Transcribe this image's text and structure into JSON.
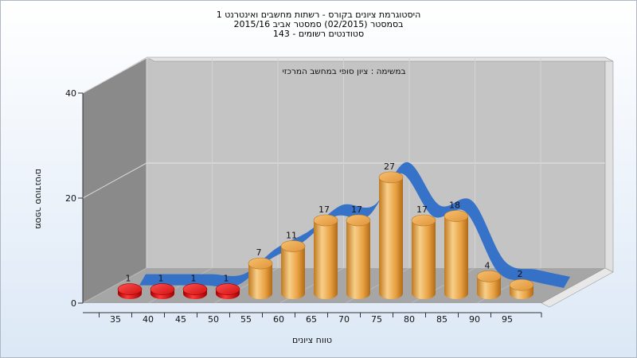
{
  "chart_data": {
    "type": "bar",
    "title_lines": [
      "היסטוגרמת ציונים בקורס - רשתות מחשבים ואינטרנט 1",
      "בסמסטר  (02/2015)  סמסטר אביב 2015/16",
      "143 - סטודנטים רשומים"
    ],
    "subtitle": "במשימה : ציון סופי במחשב המרכזי",
    "xlabel": "טווח ציונים",
    "ylabel": "מספר סטודנטים",
    "ylim": [
      0,
      40
    ],
    "yticks": [
      0,
      20,
      40
    ],
    "categories": [
      "35",
      "40",
      "45",
      "50",
      "55",
      "60",
      "65",
      "70",
      "75",
      "80",
      "85",
      "90",
      "95"
    ],
    "values": [
      1,
      1,
      1,
      1,
      7,
      11,
      17,
      17,
      27,
      17,
      18,
      4,
      2
    ],
    "bar_colors": [
      "#e01818",
      "#e01818",
      "#e01818",
      "#e01818",
      "#f0a040",
      "#f0a040",
      "#f0a040",
      "#f0a040",
      "#f0a040",
      "#f0a040",
      "#f0a040",
      "#f0a040",
      "#f0a040"
    ],
    "curve_color": "#2e6ec8",
    "grid": true
  }
}
